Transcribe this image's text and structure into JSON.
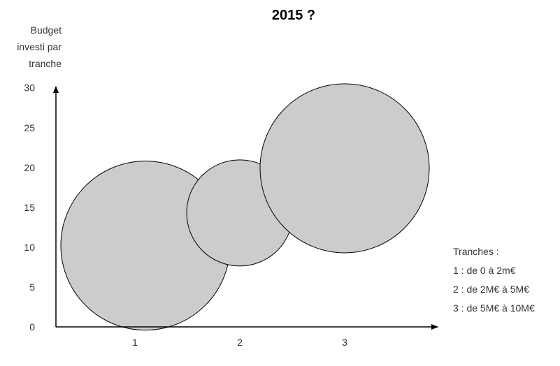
{
  "chart_data": {
    "type": "bubble",
    "title": "2015 ?",
    "ylabel_lines": [
      "Budget",
      "investi par",
      "tranche"
    ],
    "yticks": [
      0,
      5,
      10,
      15,
      20,
      25,
      30
    ],
    "xticks": [
      1,
      2,
      3
    ],
    "ylim": [
      0,
      30
    ],
    "grid": false,
    "bubble_fill": "#cccccc",
    "bubble_stroke": "#000000",
    "points": [
      {
        "x": 1.1,
        "y": 10.2
      },
      {
        "x": 2.0,
        "y": 14.3
      },
      {
        "x": 3.0,
        "y": 19.9
      }
    ],
    "legend": {
      "title": "Tranches :",
      "items": [
        "1 : de 0 à 2m€",
        "2 : de 2M€ à 5M€",
        "3 : de 5M€ à 10M€"
      ]
    }
  }
}
